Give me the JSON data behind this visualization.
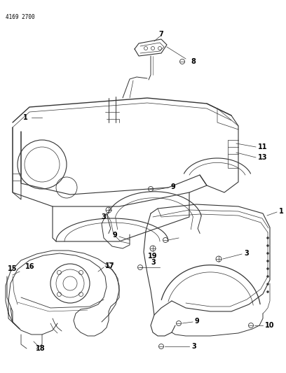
{
  "header": "4169 2700",
  "bg_color": "#ffffff",
  "line_color": "#333333",
  "label_color": "#000000",
  "figsize": [
    4.08,
    5.33
  ],
  "dpi": 100
}
